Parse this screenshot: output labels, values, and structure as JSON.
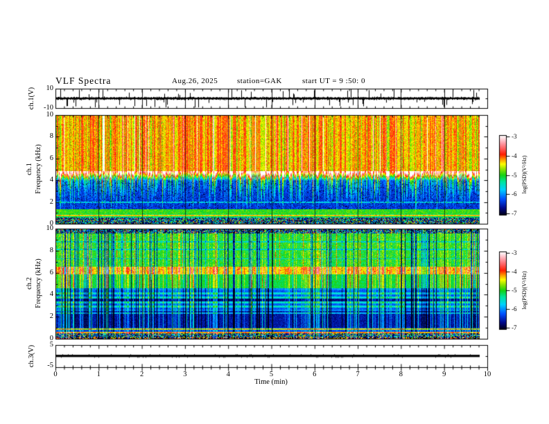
{
  "figure": {
    "title": "VLF  Spectra",
    "date": "Aug.26, 2025",
    "station": "station=GAK",
    "start_ut": "start UT =  9 :50: 0"
  },
  "axes": {
    "time": {
      "label": "Time  (min)",
      "ticks": [
        "0",
        "1",
        "2",
        "3",
        "4",
        "5",
        "6",
        "7",
        "8",
        "9",
        "10"
      ],
      "range": [
        0,
        10
      ]
    },
    "ch1_volts": {
      "label": "ch.1(V)",
      "ticks": [
        "10",
        "-10"
      ],
      "range": [
        -10,
        10
      ]
    },
    "ch3_volts": {
      "label": "ch.3(V)",
      "ticks": [
        "5",
        "-5"
      ],
      "range": [
        -5,
        5
      ]
    },
    "freq": {
      "channel1": "ch.1",
      "channel2": "ch.2",
      "label": "Frequency  (kHz)",
      "ticks": [
        "10",
        "8",
        "6",
        "4",
        "2",
        "0"
      ],
      "range": [
        0,
        10
      ]
    },
    "colorbar": {
      "label": "log(PSD)(V²/Hz)",
      "ticks": [
        "-3",
        "-4",
        "-5",
        "-6",
        "-7"
      ],
      "range": [
        -7,
        -3
      ]
    }
  },
  "colors": {
    "background": "#ffffff",
    "axis": "#000000",
    "trace": "#000000",
    "colormap": [
      {
        "t": 0.0,
        "hex": "#000014"
      },
      {
        "t": 0.09,
        "hex": "#000A8C"
      },
      {
        "t": 0.2,
        "hex": "#0050FF"
      },
      {
        "t": 0.32,
        "hex": "#00D2FF"
      },
      {
        "t": 0.42,
        "hex": "#00E69B"
      },
      {
        "t": 0.5,
        "hex": "#14D214"
      },
      {
        "t": 0.58,
        "hex": "#96E600"
      },
      {
        "t": 0.64,
        "hex": "#FFFF00"
      },
      {
        "t": 0.7,
        "hex": "#FF9600"
      },
      {
        "t": 0.76,
        "hex": "#FF1E00"
      },
      {
        "t": 0.83,
        "hex": "#FF5A5A"
      },
      {
        "t": 0.9,
        "hex": "#FF9BA5"
      },
      {
        "t": 0.96,
        "hex": "#FFDCE1"
      },
      {
        "t": 1.0,
        "hex": "#FFFFFF"
      }
    ]
  },
  "chart_data": [
    {
      "id": "ch1_waveform",
      "type": "line",
      "ylabel": "ch.1(V)",
      "ylim": [
        -10,
        10
      ],
      "xlim": [
        0,
        10
      ],
      "description": "continuous broadband noise centered on 0 V with dense impulsive sferic spikes reaching toward ±10 V",
      "baseline_v": 0,
      "noise_v": 1.5,
      "spike_v_max": 9,
      "spike_probability": 0.09,
      "data_end_min": 9.8
    },
    {
      "id": "ch1_spectrogram",
      "type": "heatmap",
      "ylabel": [
        "ch.1",
        "Frequency (kHz)"
      ],
      "ylim": [
        0,
        10
      ],
      "xlim": [
        0,
        10
      ],
      "zlim": [
        -7,
        -3
      ],
      "zlabel": "log(PSD)(V²/Hz)",
      "bands": [
        {
          "f": [
            4.88,
            10.0
          ],
          "level": -3.95,
          "texture": "red background, dense yellow-orange vertical sferic streaks, occasional white columns"
        },
        {
          "f": [
            4.0,
            4.88
          ],
          "level": [
            -6.35,
            -3.95
          ],
          "texture": "sharp red-to-blue transition"
        },
        {
          "f": [
            1.35,
            4.0
          ],
          "level": -6.35,
          "texture": "dark blue / black with green-cyan vertical streaks penetrating from above"
        },
        {
          "f": [
            0.95,
            1.35
          ],
          "level": -4.95,
          "texture": "green horizontal band"
        },
        {
          "f": [
            0.6,
            0.95
          ],
          "level": -5.2,
          "texture": "green band"
        },
        {
          "f": [
            0.0,
            0.6
          ],
          "level": "speckle",
          "texture": "dark multicolor speckle row"
        }
      ],
      "hlines": [
        {
          "f": 2.0,
          "level": -5.7
        },
        {
          "f": 0.78,
          "level": -4.35
        }
      ],
      "data_end_min": 9.8
    },
    {
      "id": "ch2_spectrogram",
      "type": "heatmap",
      "ylabel": [
        "ch.2",
        "Frequency (kHz)"
      ],
      "ylim": [
        0,
        10
      ],
      "xlim": [
        0,
        10
      ],
      "zlim": [
        -7,
        -3
      ],
      "zlabel": "log(PSD)(V²/Hz)",
      "bands": [
        {
          "f": [
            9.62,
            10.0
          ],
          "level": "speckle",
          "texture": "multicolor speckle row"
        },
        {
          "f": [
            6.55,
            9.62
          ],
          "level": -5.05,
          "texture": "green with dark vertical streaks and thin darker horizontal lines"
        },
        {
          "f": [
            5.85,
            6.55
          ],
          "level": -4.4,
          "blobs": -3.95,
          "texture": "strong yellow band with red-orange blobs near 6 kHz"
        },
        {
          "f": [
            4.65,
            5.85
          ],
          "level": -5.1,
          "texture": "green"
        },
        {
          "f": [
            2.55,
            4.65
          ],
          "level": "stripes",
          "stripe_levels": [
            -5.55,
            -6.2
          ],
          "texture": "alternating cyan / blue horizontal stripes"
        },
        {
          "f": [
            1.05,
            2.55
          ],
          "level": -6.55,
          "texture": "dark navy band with black patches"
        },
        {
          "f": [
            0.55,
            1.05
          ],
          "level": -6.2,
          "texture": "dark with bright yellow / red thin lines"
        },
        {
          "f": [
            0.0,
            0.55
          ],
          "level": "speckle",
          "texture": "dark speckle with reddish bottom row"
        }
      ],
      "hlines": [
        {
          "f": 8.85,
          "level": -5.6
        },
        {
          "f": 8.15,
          "level": -5.6
        },
        {
          "f": 7.3,
          "level": -5.6
        },
        {
          "f": 2.35,
          "level": -5.8
        },
        {
          "f": 0.9,
          "level": -4.5
        },
        {
          "f": 0.62,
          "level": -4.15
        }
      ],
      "data_end_min": 9.8
    },
    {
      "id": "ch3_waveform",
      "type": "line",
      "ylabel": "ch.3(V)",
      "ylim": [
        -5,
        5
      ],
      "xlim": [
        0,
        10
      ],
      "description": "flat thick trace at 0 V for the whole record",
      "baseline_v": 0,
      "noise_v": 0,
      "data_end_min": 9.8
    }
  ]
}
